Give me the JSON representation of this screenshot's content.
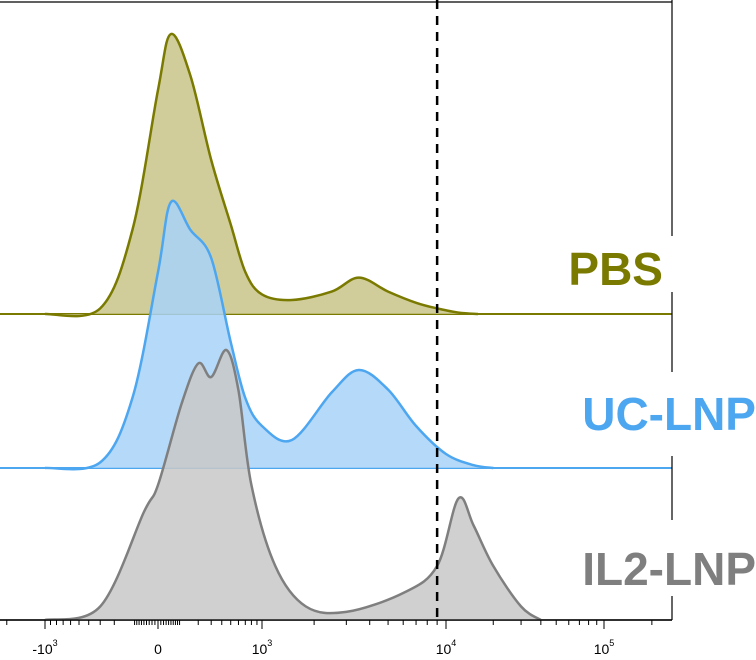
{
  "chart_data": {
    "type": "area",
    "subtype": "staggered-histogram",
    "x_scale": "biexponential",
    "x_tick_labels": [
      {
        "base": "-10",
        "exp": "3",
        "value": -1000
      },
      {
        "base": "0",
        "exp": "",
        "value": 0
      },
      {
        "base": "10",
        "exp": "3",
        "value": 1000
      },
      {
        "base": "10",
        "exp": "4",
        "value": 10000
      },
      {
        "base": "10",
        "exp": "5",
        "value": 100000
      }
    ],
    "gate_x": 9000,
    "series": [
      {
        "name": "PBS",
        "stroke": "#7a7a00",
        "fill": "#c8c48a",
        "x": [
          -1000,
          -300,
          -100,
          0,
          50,
          150,
          300,
          500,
          700,
          1000,
          1500,
          2500,
          3500,
          5000,
          7000,
          9000,
          12000,
          16000
        ],
        "y": [
          0,
          0.02,
          0.3,
          0.8,
          1.0,
          0.85,
          0.55,
          0.32,
          0.15,
          0.07,
          0.05,
          0.08,
          0.13,
          0.08,
          0.04,
          0.02,
          0.005,
          0
        ]
      },
      {
        "name": "UC-LNP",
        "stroke": "#4da6f0",
        "fill": "#a8d2f8",
        "x": [
          -1000,
          -300,
          -100,
          0,
          50,
          150,
          300,
          500,
          700,
          1000,
          1500,
          2500,
          3500,
          5000,
          7000,
          10000,
          15000,
          20000
        ],
        "y": [
          0,
          0.02,
          0.25,
          0.7,
          0.95,
          0.85,
          0.75,
          0.45,
          0.25,
          0.15,
          0.1,
          0.27,
          0.35,
          0.28,
          0.15,
          0.05,
          0.01,
          0
        ]
      },
      {
        "name": "IL2-LNP",
        "stroke": "#7f7f7f",
        "fill": "#c8c8c8",
        "x": [
          -1000,
          -300,
          -50,
          0,
          100,
          200,
          300,
          450,
          600,
          800,
          1200,
          1800,
          3000,
          6000,
          9000,
          12000,
          15000,
          20000,
          30000,
          40000
        ],
        "y": [
          0,
          0.05,
          0.4,
          0.5,
          0.8,
          0.95,
          0.9,
          1.0,
          0.85,
          0.5,
          0.2,
          0.05,
          0.03,
          0.1,
          0.2,
          0.45,
          0.35,
          0.2,
          0.05,
          0
        ]
      }
    ]
  }
}
